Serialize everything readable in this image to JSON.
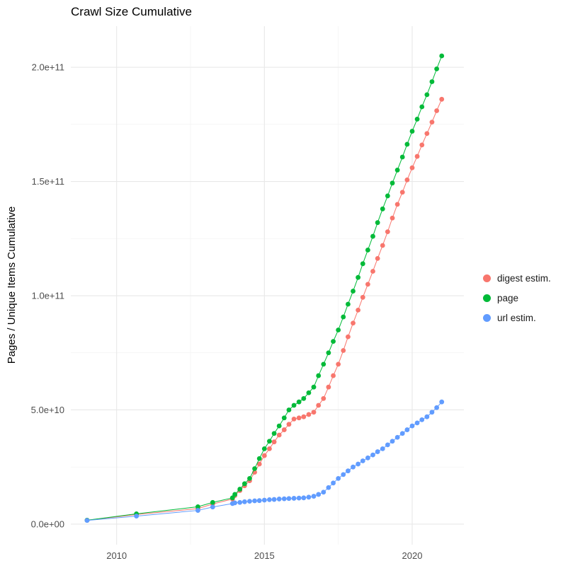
{
  "chart_data": {
    "type": "scatter",
    "title": "Crawl Size Cumulative",
    "xlabel": "",
    "ylabel": "Pages / Unique Items Cumulative",
    "grid": true,
    "legend_position": "right",
    "x_ticks": [
      2010,
      2015,
      2020
    ],
    "x_tick_labels": [
      "2010",
      "2015",
      "2020"
    ],
    "x_minor_ticks": [
      2012.5,
      2017.5
    ],
    "y_unit": "1e9",
    "y_ticks_billions": [
      0,
      50,
      100,
      150,
      200
    ],
    "y_tick_labels": [
      "0.0e+00",
      "5.0e+10",
      "1.0e+11",
      "1.5e+11",
      "2.0e+11"
    ],
    "y_minor_ticks_billions": [
      25,
      75,
      125,
      175
    ],
    "xlim": [
      2008.45,
      2021.75
    ],
    "ylim_billions": [
      -9,
      218
    ],
    "x": [
      2009.0,
      2010.67,
      2012.75,
      2013.25,
      2013.92,
      2014.0,
      2014.17,
      2014.33,
      2014.5,
      2014.67,
      2014.83,
      2015.0,
      2015.17,
      2015.33,
      2015.5,
      2015.67,
      2015.83,
      2016.0,
      2016.17,
      2016.33,
      2016.5,
      2016.67,
      2016.83,
      2017.0,
      2017.17,
      2017.33,
      2017.5,
      2017.67,
      2017.83,
      2018.0,
      2018.17,
      2018.33,
      2018.5,
      2018.67,
      2018.83,
      2019.0,
      2019.17,
      2019.33,
      2019.5,
      2019.67,
      2019.83,
      2020.0,
      2020.17,
      2020.33,
      2020.5,
      2020.67,
      2020.83,
      2021.0
    ],
    "series": [
      {
        "name": "digest estim.",
        "color": "#F8766D",
        "y_billions": [
          1.7,
          4.2,
          6.8,
          8.8,
          11.0,
          12.5,
          14.7,
          16.8,
          19.0,
          22.7,
          26.3,
          30.0,
          33.0,
          36.0,
          39.0,
          41.3,
          43.7,
          46.0,
          46.5,
          47.0,
          48.0,
          49.0,
          52.0,
          55.0,
          60.0,
          65.0,
          70.0,
          76.0,
          82.0,
          88.0,
          93.7,
          99.3,
          105.0,
          110.7,
          116.3,
          122.0,
          128.0,
          134.0,
          140.0,
          145.3,
          150.7,
          156.0,
          161.0,
          166.0,
          171.0,
          176.0,
          181.0,
          186.0
        ]
      },
      {
        "name": "page",
        "color": "#00BA38",
        "y_billions": [
          1.7,
          4.5,
          7.6,
          9.5,
          11.5,
          13.0,
          15.3,
          17.7,
          20.0,
          24.3,
          28.7,
          33.0,
          36.3,
          39.7,
          43.0,
          46.5,
          50.0,
          52.0,
          53.5,
          55.0,
          57.5,
          60.0,
          65.0,
          70.0,
          75.0,
          80.0,
          85.0,
          90.7,
          96.3,
          102.0,
          108.0,
          114.0,
          120.0,
          126.0,
          132.0,
          138.0,
          143.7,
          149.3,
          155.0,
          160.7,
          166.3,
          172.0,
          177.3,
          182.7,
          188.0,
          193.7,
          199.3,
          205.0
        ]
      },
      {
        "name": "url estim.",
        "color": "#619CFF",
        "y_billions": [
          1.6,
          3.5,
          6.0,
          7.5,
          9.0,
          9.3,
          9.5,
          9.8,
          10.0,
          10.2,
          10.3,
          10.5,
          10.7,
          10.8,
          11.0,
          11.1,
          11.2,
          11.3,
          11.4,
          11.5,
          11.8,
          12.2,
          13.0,
          14.0,
          16.0,
          18.0,
          20.0,
          21.7,
          23.3,
          25.0,
          26.3,
          27.7,
          29.0,
          30.3,
          31.7,
          33.0,
          34.7,
          36.3,
          38.0,
          39.7,
          41.3,
          43.0,
          44.3,
          45.7,
          47.0,
          49.0,
          51.0,
          53.5
        ]
      }
    ]
  }
}
